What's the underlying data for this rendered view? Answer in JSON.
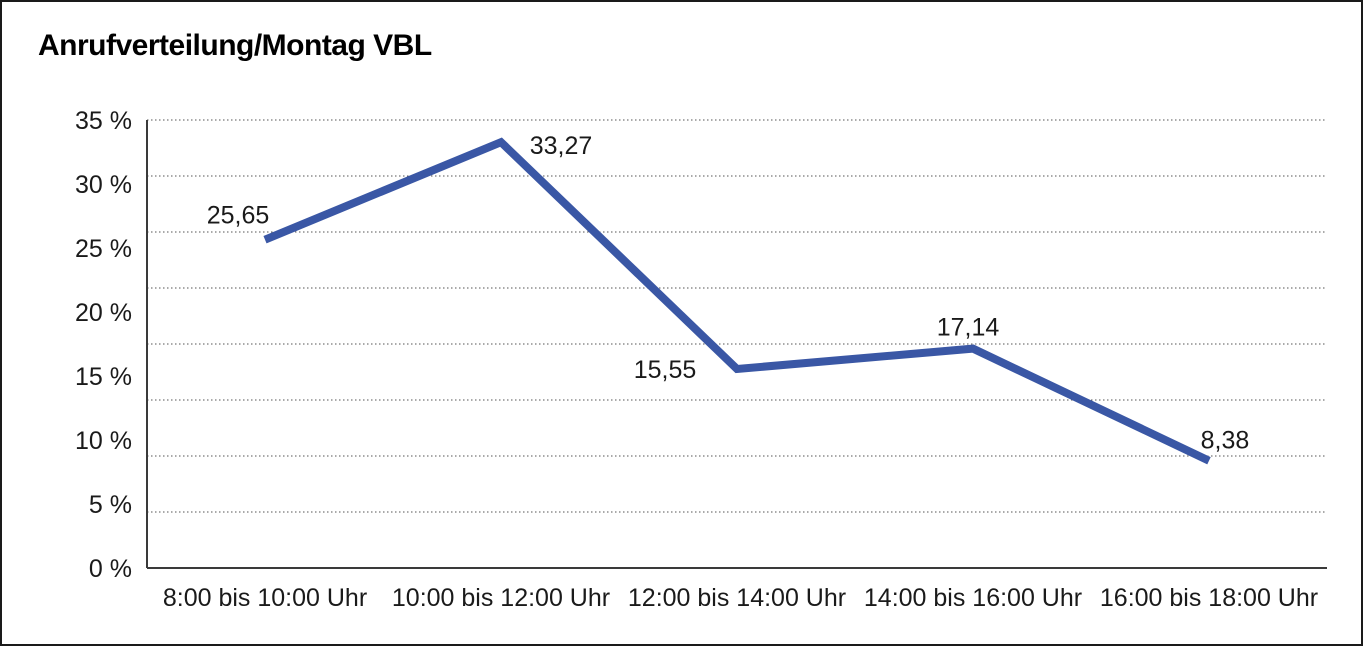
{
  "chart_data": {
    "type": "line",
    "title": "Anrufverteilung/Montag VBL",
    "categories": [
      "8:00 bis 10:00 Uhr",
      "10:00 bis 12:00 Uhr",
      "12:00 bis 14:00 Uhr",
      "14:00 bis 16:00 Uhr",
      "16:00 bis 18:00 Uhr"
    ],
    "series": [
      {
        "values": [
          25.65,
          33.27,
          15.55,
          17.14,
          8.38
        ],
        "data_labels": [
          "25,65",
          "33,27",
          "15,55",
          "17,14",
          "8,38"
        ]
      }
    ],
    "y_ticks": [
      {
        "value": 0,
        "label": "0 %"
      },
      {
        "value": 5,
        "label": "5 %"
      },
      {
        "value": 10,
        "label": "10 %"
      },
      {
        "value": 15,
        "label": "15 %"
      },
      {
        "value": 20,
        "label": "20 %"
      },
      {
        "value": 25,
        "label": "25 %"
      },
      {
        "value": 30,
        "label": "30 %"
      },
      {
        "value": 35,
        "label": "35 %"
      }
    ],
    "ylim": [
      0,
      35
    ],
    "xlabel": "",
    "ylabel": "",
    "legend": "none",
    "grid": {
      "horizontal": true,
      "style": "dotted",
      "divisions": 8,
      "color": "#555555"
    },
    "colors": {
      "line": "#3A57A5",
      "axis": "#3a3a3a",
      "text": "#1a1a1a",
      "background": "#ffffff",
      "frame_border": "#1a1a1a"
    }
  }
}
